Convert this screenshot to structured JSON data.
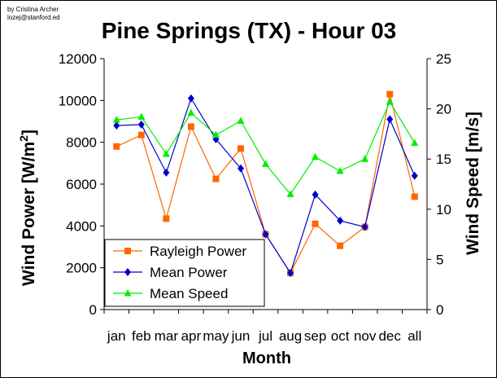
{
  "chart_data": {
    "type": "line",
    "credit": [
      "by Cristina Archer",
      "lozej@stanford.ed"
    ],
    "title": "Pine Springs (TX) - Hour 03",
    "xlabel": "Month",
    "ylabel": "Wind Power [W/m",
    "ylabel_sup": "2",
    "ylabel_end": "]",
    "y2label": "Wind Speed [m/s]",
    "categories": [
      "jan",
      "feb",
      "mar",
      "apr",
      "may",
      "jun",
      "jul",
      "aug",
      "sep",
      "oct",
      "nov",
      "dec",
      "all"
    ],
    "ylim": [
      0,
      12000
    ],
    "y2lim": [
      0,
      25
    ],
    "yticks": [
      "0",
      "2000",
      "4000",
      "6000",
      "8000",
      "10000",
      "12000"
    ],
    "y2ticks": [
      "0",
      "5",
      "10",
      "15",
      "20",
      "25"
    ],
    "legend_position": "bottom-left",
    "grid": false,
    "series": [
      {
        "name": "Rayleigh Power",
        "axis": "left",
        "color": "#ff6600",
        "marker": "square",
        "values": [
          7800,
          8350,
          4350,
          8750,
          6250,
          7700,
          3600,
          1750,
          4100,
          3050,
          3950,
          10300,
          5400
        ]
      },
      {
        "name": "Mean Power",
        "axis": "left",
        "color": "#0000cc",
        "marker": "diamond",
        "values": [
          8800,
          8850,
          6550,
          10100,
          8150,
          6750,
          3600,
          1750,
          5500,
          4250,
          3950,
          9100,
          6400
        ]
      },
      {
        "name": "Mean Speed",
        "axis": "right",
        "color": "#00ee00",
        "marker": "triangle",
        "values": [
          18.9,
          19.2,
          15.5,
          19.6,
          17.4,
          18.8,
          14.5,
          11.5,
          15.2,
          13.8,
          15.0,
          20.7,
          16.6
        ]
      }
    ]
  }
}
